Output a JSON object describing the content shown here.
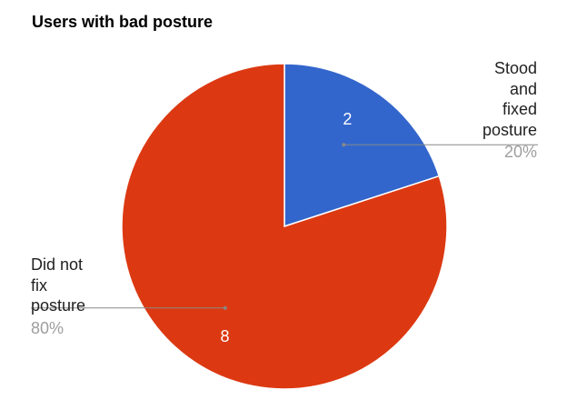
{
  "chart_data": {
    "type": "pie",
    "title": "Users with bad posture",
    "slices": [
      {
        "label_lines": [
          "Stood",
          "and",
          "fixed",
          "posture"
        ],
        "value": 2,
        "value_label": "2",
        "percent_label": "20%",
        "color": "#3366cc"
      },
      {
        "label_lines": [
          "Did not",
          "fix",
          "posture"
        ],
        "value": 8,
        "value_label": "8",
        "percent_label": "80%",
        "color": "#dc3912"
      }
    ],
    "start_angle_deg": 0,
    "direction": "clockwise",
    "legend": "callouts"
  }
}
